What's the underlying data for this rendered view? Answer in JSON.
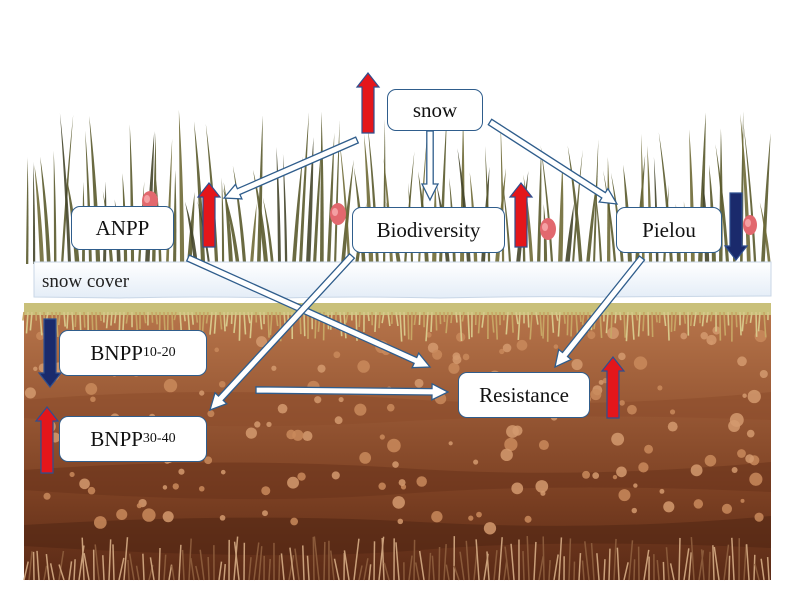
{
  "nodes": {
    "snow": "snow",
    "anpp": "ANPP",
    "biodiversity": "Biodiversity",
    "pielou": "Pielou",
    "bnpp1_base": "BNPP",
    "bnpp1_sub": "10-20",
    "bnpp2_base": "BNPP",
    "bnpp2_sub": "30-40",
    "resistance": "Resistance"
  },
  "labels": {
    "snow_cover": "snow cover"
  },
  "indicators": [
    {
      "target": "snow",
      "direction": "up",
      "color": "#e4161b"
    },
    {
      "target": "ANPP",
      "direction": "up",
      "color": "#e4161b"
    },
    {
      "target": "Biodiversity",
      "direction": "up",
      "color": "#e4161b"
    },
    {
      "target": "Pielou",
      "direction": "down",
      "color": "#1a2a6c"
    },
    {
      "target": "BNPP10-20",
      "direction": "down",
      "color": "#1a2a6c"
    },
    {
      "target": "BNPP30-40",
      "direction": "up",
      "color": "#e4161b"
    },
    {
      "target": "Resistance",
      "direction": "up",
      "color": "#e4161b"
    }
  ],
  "edges": [
    {
      "from": "snow",
      "to": "ANPP"
    },
    {
      "from": "snow",
      "to": "Biodiversity"
    },
    {
      "from": "snow",
      "to": "Pielou"
    },
    {
      "from": "ANPP",
      "to": "Resistance"
    },
    {
      "from": "Biodiversity",
      "to": "BNPP30-40"
    },
    {
      "from": "Pielou",
      "to": "Resistance"
    },
    {
      "from": "BNPP30-40",
      "to": "Resistance"
    }
  ],
  "colors": {
    "up": "#e4161b",
    "down": "#1a2a6c",
    "node_border": "#2f5d8c",
    "soil_top": "#9a5a36",
    "soil_bottom": "#5a2a16"
  }
}
